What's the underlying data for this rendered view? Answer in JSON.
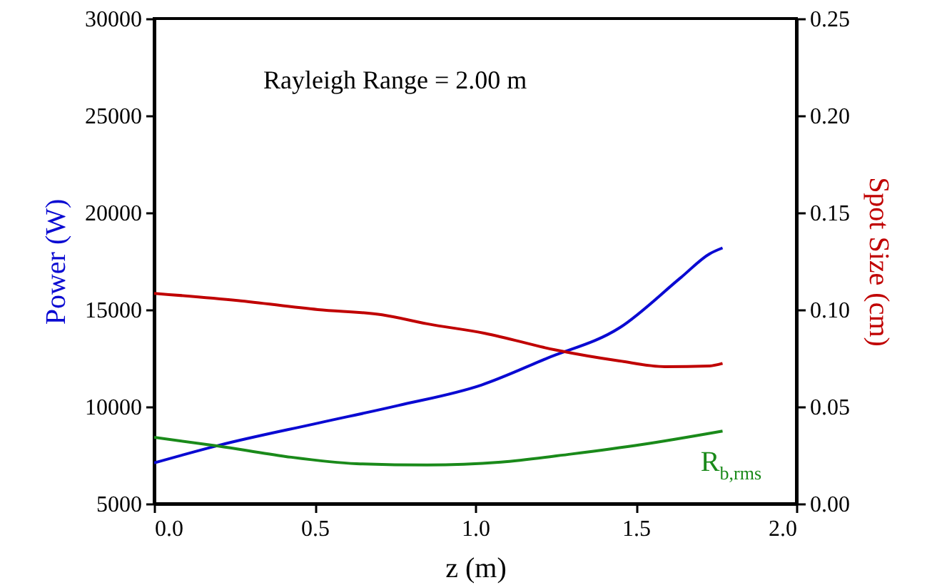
{
  "chart_data": {
    "type": "line",
    "xlabel": "z (m)",
    "ylabel": "Power (W)",
    "y2label": "Spot Size (cm)",
    "annotations": [
      "Rayleigh Range = 2.00 m"
    ],
    "xlim": [
      0,
      2
    ],
    "xticks": [
      {
        "value": 0,
        "label": "0.0"
      },
      {
        "value": 0.5,
        "label": "0.5"
      },
      {
        "value": 1,
        "label": "1.0"
      },
      {
        "value": 1.5,
        "label": "1.5"
      },
      {
        "value": 2,
        "label": "2.0"
      }
    ],
    "ylim": [
      5000,
      30000
    ],
    "yticks": [
      5000,
      10000,
      15000,
      20000,
      25000,
      30000
    ],
    "y2lim": [
      0,
      0.25
    ],
    "y2ticks": [
      {
        "value": 0,
        "label": "0.00"
      },
      {
        "value": 0.05,
        "label": "0.05"
      },
      {
        "value": 0.1,
        "label": "0.10"
      },
      {
        "value": 0.15,
        "label": "0.15"
      },
      {
        "value": 0.2,
        "label": "0.20"
      },
      {
        "value": 0.25,
        "label": "0.25"
      }
    ],
    "series": [
      {
        "color": "#0a0ad2",
        "x": [
          0,
          0.2,
          0.51,
          0.76,
          1.02,
          1.22,
          1.45,
          1.64,
          1.73,
          1.77
        ],
        "values": [
          7100,
          8000,
          9150,
          10060,
          11120,
          12470,
          14070,
          16650,
          17880,
          18180
        ]
      },
      {
        "color": "#c00000",
        "axis": "y2",
        "x": [
          0,
          0.26,
          0.51,
          0.71,
          0.85,
          1.03,
          1.25,
          1.45,
          1.59,
          1.73,
          1.77
        ],
        "values": [
          0.1084,
          0.1047,
          0.1,
          0.0973,
          0.0927,
          0.0878,
          0.0792,
          0.0735,
          0.0706,
          0.071,
          0.0723
        ]
      },
      {
        "name": "R$_{b,rms}$",
        "color": "#1a8a1a",
        "axis": "y2",
        "x": [
          0,
          0.2,
          0.41,
          0.63,
          0.85,
          1.08,
          1.3,
          1.52,
          1.77
        ],
        "values": [
          0.0342,
          0.0297,
          0.0243,
          0.0206,
          0.0199,
          0.0214,
          0.0256,
          0.0305,
          0.0374
        ]
      }
    ]
  }
}
